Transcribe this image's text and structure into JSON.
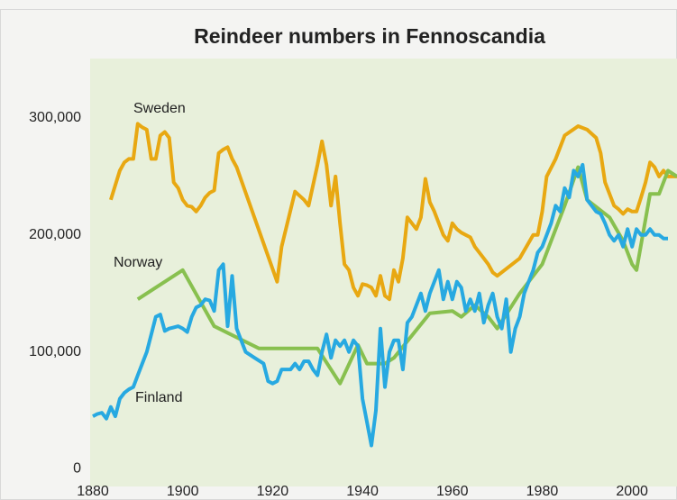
{
  "chart_data": {
    "type": "line",
    "title": "Reindeer numbers in Fennoscandia",
    "xlim": [
      1880,
      2010
    ],
    "xticks": [
      1880,
      1900,
      1920,
      1940,
      1960,
      1980,
      2000
    ],
    "ylim": [
      -15000,
      350000
    ],
    "yticks": [
      0,
      {
        "value": 100000,
        "label": "100,000"
      },
      {
        "value": 200000,
        "label": "200,000"
      },
      {
        "value": 300000,
        "label": "300,000"
      }
    ],
    "series": [
      {
        "name": "Sweden",
        "color": "#e8a812",
        "x": [
          1884,
          1886,
          1887,
          1888,
          1889,
          1890,
          1891,
          1892,
          1893,
          1894,
          1895,
          1896,
          1897,
          1898,
          1899,
          1900,
          1901,
          1902,
          1903,
          1904,
          1905,
          1906,
          1907,
          1908,
          1909,
          1910,
          1911,
          1912,
          1921,
          1922,
          1925,
          1927,
          1928,
          1930,
          1931,
          1932,
          1933,
          1934,
          1935,
          1936,
          1937,
          1938,
          1939,
          1940,
          1941,
          1942,
          1943,
          1944,
          1945,
          1946,
          1947,
          1948,
          1949,
          1950,
          1951,
          1952,
          1953,
          1954,
          1955,
          1956,
          1957,
          1958,
          1959,
          1960,
          1961,
          1962,
          1963,
          1964,
          1965,
          1966,
          1967,
          1968,
          1969,
          1970,
          1975,
          1978,
          1979,
          1980,
          1981,
          1983,
          1985,
          1988,
          1990,
          1992,
          1993,
          1994,
          1995,
          1996,
          1997,
          1998,
          1999,
          2000,
          2001,
          2002,
          2003,
          2004,
          2005,
          2006,
          2007,
          2008,
          2009,
          2010
        ],
        "values": [
          230000,
          255000,
          262000,
          265000,
          265000,
          295000,
          292000,
          290000,
          265000,
          265000,
          285000,
          288000,
          283000,
          245000,
          240000,
          230000,
          225000,
          224000,
          220000,
          225000,
          232000,
          236000,
          238000,
          270000,
          273000,
          275000,
          265000,
          258000,
          160000,
          190000,
          237000,
          230000,
          225000,
          260000,
          280000,
          260000,
          225000,
          250000,
          210000,
          175000,
          170000,
          155000,
          148000,
          158000,
          157000,
          155000,
          148000,
          165000,
          148000,
          145000,
          170000,
          160000,
          180000,
          215000,
          210000,
          205000,
          215000,
          248000,
          228000,
          220000,
          210000,
          200000,
          195000,
          210000,
          205000,
          202000,
          200000,
          198000,
          190000,
          185000,
          180000,
          175000,
          168000,
          165000,
          180000,
          200000,
          200000,
          220000,
          250000,
          265000,
          285000,
          293000,
          290000,
          283000,
          270000,
          245000,
          235000,
          225000,
          222000,
          218000,
          222000,
          220000,
          220000,
          232000,
          245000,
          262000,
          258000,
          250000,
          255000,
          250000,
          250000,
          250000
        ]
      },
      {
        "name": "Norway",
        "color": "#88c04f",
        "x": [
          1890,
          1900,
          1907,
          1917,
          1930,
          1935,
          1939,
          1941,
          1945,
          1947,
          1955,
          1960,
          1962,
          1965,
          1968,
          1970,
          1975,
          1980,
          1985,
          1988,
          1990,
          1995,
          1998,
          2000,
          2001,
          2004,
          2006,
          2008,
          2010
        ],
        "values": [
          145000,
          170000,
          122000,
          103000,
          103000,
          73000,
          106000,
          90000,
          90000,
          95000,
          133000,
          135000,
          130000,
          140000,
          130000,
          120000,
          150000,
          175000,
          225000,
          258000,
          230000,
          215000,
          195000,
          175000,
          170000,
          235000,
          235000,
          255000,
          250000
        ]
      },
      {
        "name": "Finland",
        "color": "#27a9e1",
        "x": [
          1880,
          1881,
          1882,
          1883,
          1884,
          1885,
          1886,
          1887,
          1888,
          1889,
          1890,
          1891,
          1892,
          1893,
          1894,
          1895,
          1896,
          1897,
          1898,
          1899,
          1900,
          1901,
          1902,
          1903,
          1904,
          1905,
          1906,
          1907,
          1908,
          1909,
          1910,
          1911,
          1912,
          1913,
          1914,
          1916,
          1918,
          1919,
          1920,
          1921,
          1922,
          1923,
          1924,
          1925,
          1926,
          1927,
          1928,
          1929,
          1930,
          1931,
          1932,
          1933,
          1934,
          1935,
          1936,
          1937,
          1938,
          1939,
          1940,
          1941,
          1942,
          1943,
          1944,
          1945,
          1946,
          1947,
          1948,
          1949,
          1950,
          1951,
          1952,
          1953,
          1954,
          1955,
          1956,
          1957,
          1958,
          1959,
          1960,
          1961,
          1962,
          1963,
          1964,
          1965,
          1966,
          1967,
          1968,
          1969,
          1970,
          1971,
          1972,
          1973,
          1974,
          1975,
          1976,
          1977,
          1978,
          1979,
          1980,
          1982,
          1983,
          1984,
          1985,
          1986,
          1987,
          1988,
          1989,
          1990,
          1991,
          1992,
          1993,
          1994,
          1995,
          1996,
          1997,
          1998,
          1999,
          2000,
          2001,
          2002,
          2003,
          2004,
          2005,
          2006,
          2007,
          2008
        ],
        "values": [
          45000,
          47000,
          48000,
          43000,
          53000,
          45000,
          60000,
          65000,
          68000,
          70000,
          80000,
          90000,
          100000,
          115000,
          130000,
          132000,
          118000,
          120000,
          121000,
          122000,
          120000,
          117000,
          130000,
          138000,
          140000,
          145000,
          144000,
          135000,
          170000,
          175000,
          122000,
          165000,
          120000,
          110000,
          100000,
          95000,
          90000,
          75000,
          73000,
          75000,
          85000,
          85000,
          85000,
          90000,
          85000,
          92000,
          92000,
          85000,
          80000,
          100000,
          115000,
          95000,
          110000,
          105000,
          110000,
          100000,
          110000,
          105000,
          60000,
          40000,
          20000,
          50000,
          120000,
          70000,
          100000,
          110000,
          110000,
          85000,
          125000,
          130000,
          140000,
          150000,
          135000,
          150000,
          160000,
          170000,
          145000,
          160000,
          145000,
          160000,
          155000,
          135000,
          145000,
          135000,
          150000,
          125000,
          140000,
          150000,
          130000,
          120000,
          145000,
          100000,
          120000,
          130000,
          150000,
          160000,
          170000,
          185000,
          190000,
          210000,
          225000,
          220000,
          240000,
          232000,
          255000,
          250000,
          260000,
          230000,
          225000,
          220000,
          218000,
          210000,
          200000,
          195000,
          200000,
          190000,
          205000,
          190000,
          205000,
          200000,
          200000,
          205000,
          200000,
          200000,
          197000,
          197000
        ]
      }
    ]
  }
}
